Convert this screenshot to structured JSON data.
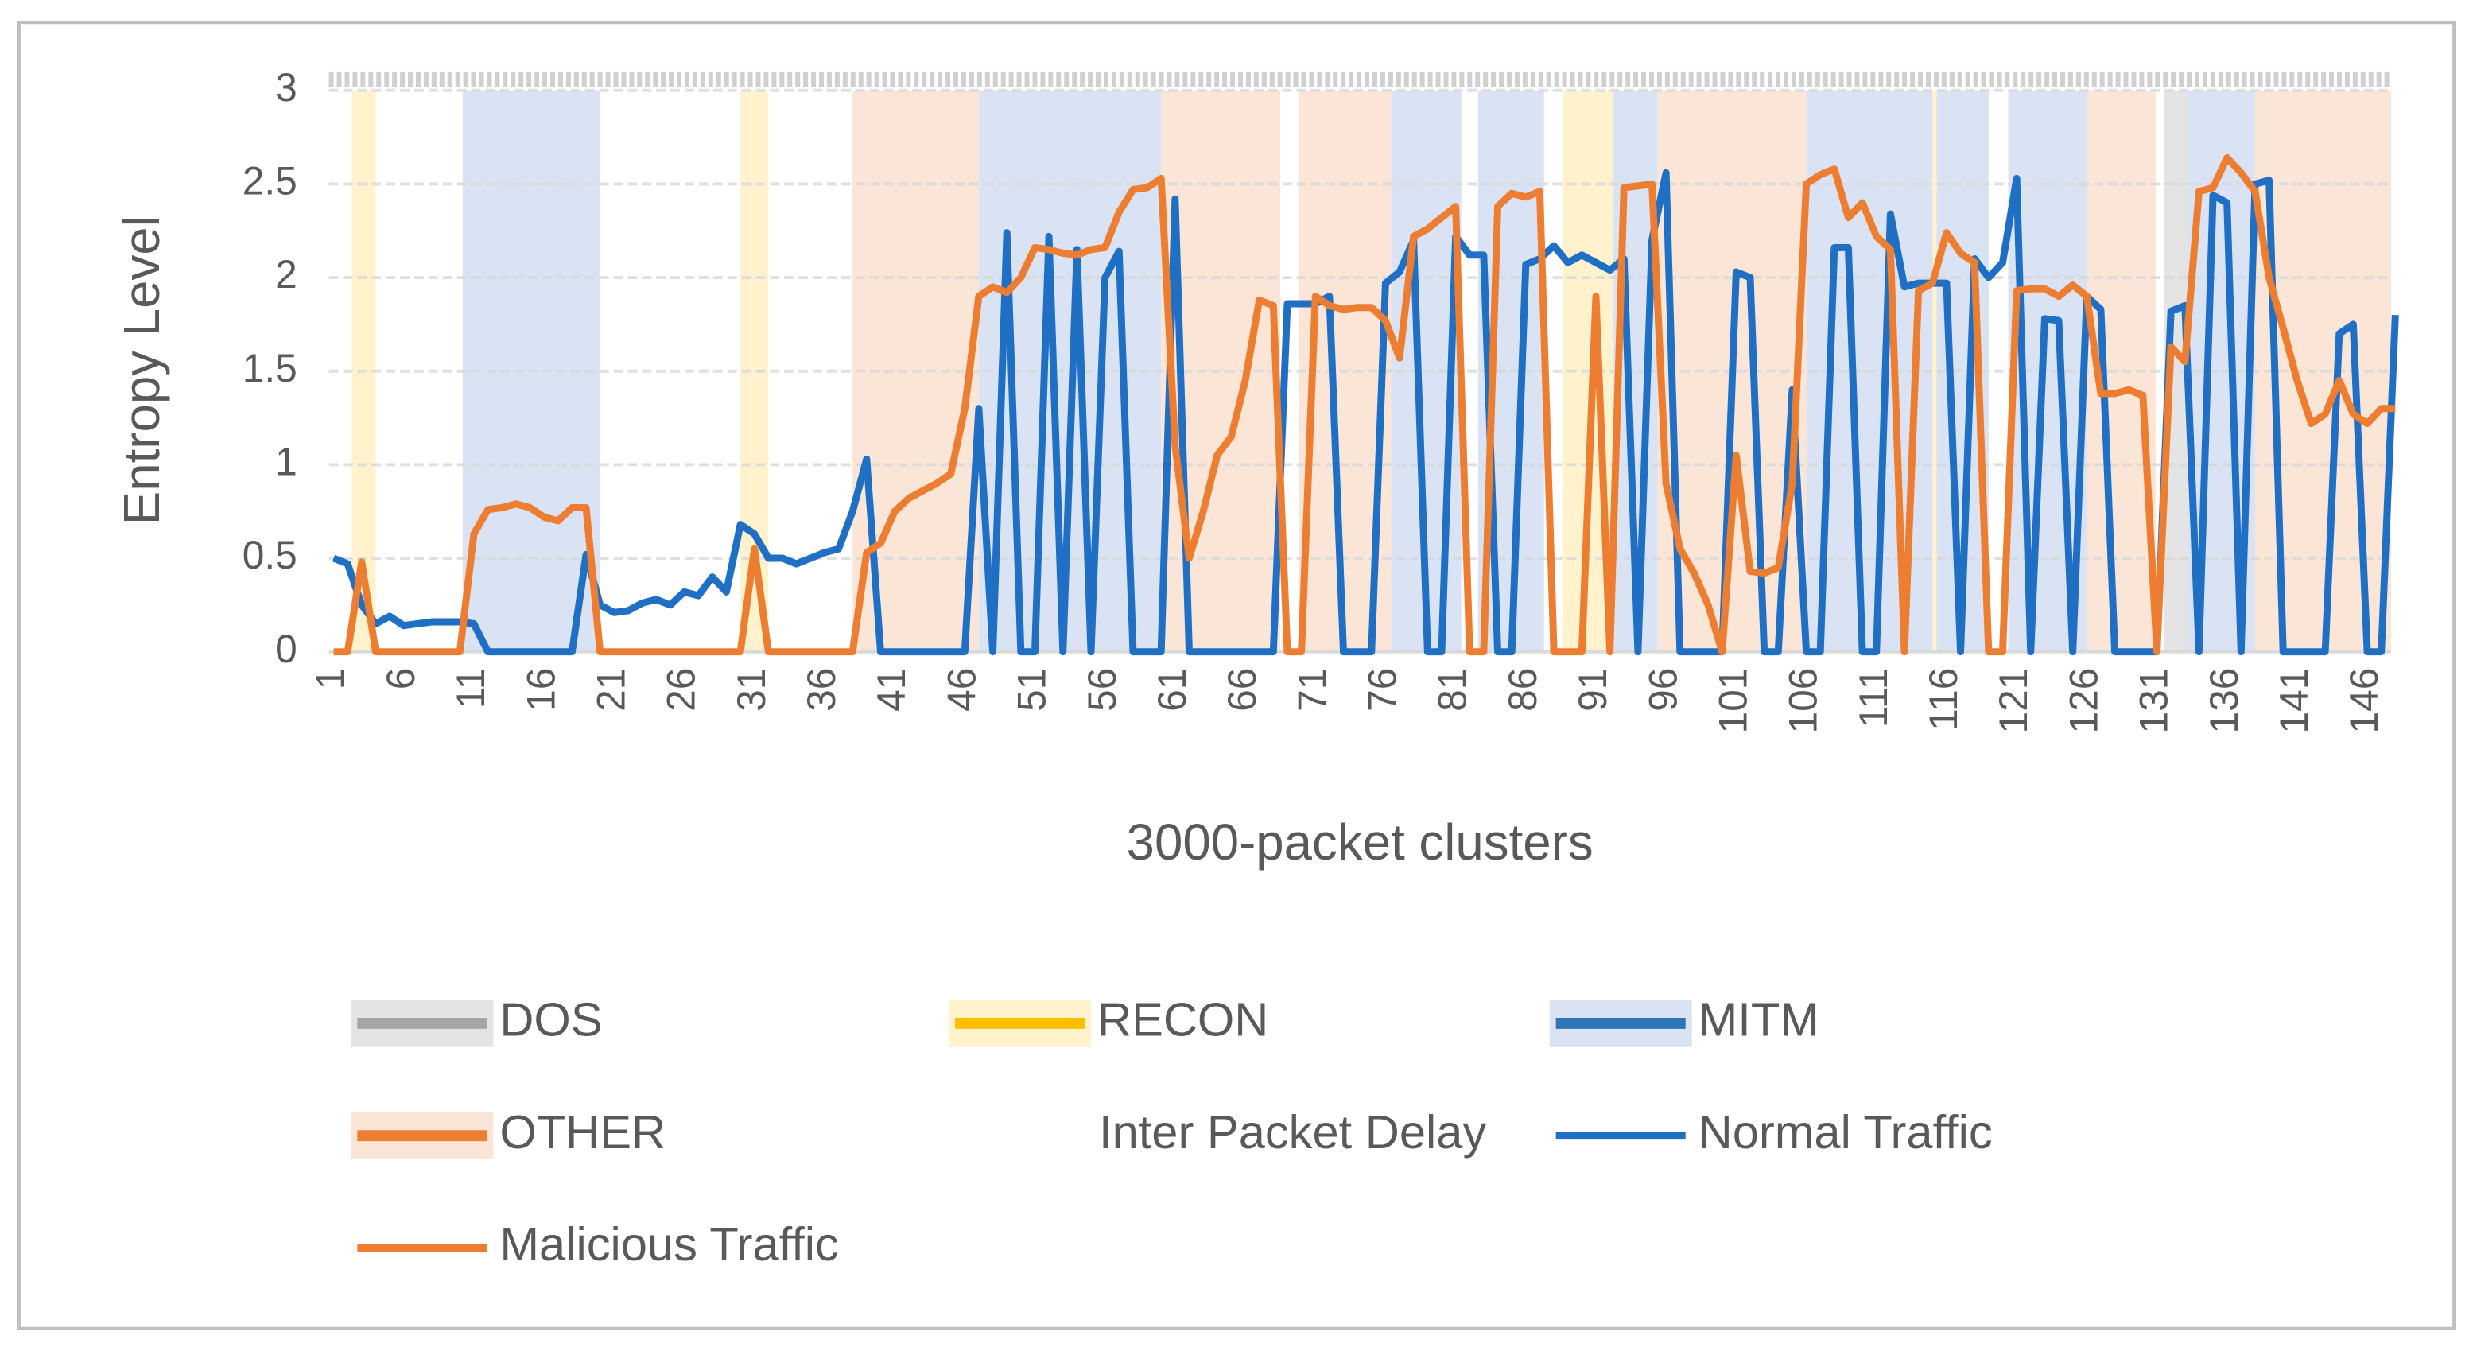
{
  "chart_data": {
    "type": "line",
    "x_label": "3000-packet clusters",
    "y_label": "Entropy Level",
    "ylim": [
      0,
      3
    ],
    "yticks": [
      0,
      0.5,
      1,
      1.5,
      2,
      2.5,
      3
    ],
    "grid": true,
    "legend": "bottom",
    "categories": [
      1,
      null,
      null,
      null,
      null,
      6,
      null,
      null,
      null,
      null,
      11,
      null,
      null,
      null,
      null,
      16,
      null,
      null,
      null,
      null,
      21,
      null,
      null,
      null,
      null,
      26,
      null,
      null,
      null,
      null,
      31,
      null,
      null,
      null,
      null,
      36,
      null,
      null,
      null,
      null,
      41,
      null,
      null,
      null,
      null,
      46,
      null,
      null,
      null,
      null,
      51,
      null,
      null,
      null,
      null,
      56,
      null,
      null,
      null,
      null,
      61,
      null,
      null,
      null,
      null,
      66,
      null,
      null,
      null,
      null,
      71,
      null,
      null,
      null,
      null,
      76,
      null,
      null,
      null,
      null,
      81,
      null,
      null,
      null,
      null,
      86,
      null,
      null,
      null,
      null,
      91,
      null,
      null,
      null,
      null,
      96,
      null,
      null,
      null,
      null,
      101,
      null,
      null,
      null,
      null,
      106,
      null,
      null,
      null,
      null,
      111,
      null,
      null,
      null,
      null,
      116,
      null,
      null,
      null,
      null,
      121,
      null,
      null,
      null,
      null,
      126,
      null,
      null,
      null,
      null,
      131,
      null,
      null,
      null,
      null,
      136,
      null,
      null,
      null,
      null,
      141,
      null,
      null,
      null,
      null,
      146,
      null,
      null
    ],
    "band_types": [
      {
        "name": "DOS",
        "color": "#e4e4e4",
        "line_color": "#a5a5a5"
      },
      {
        "name": "RECON",
        "color": "#fff2cc",
        "line_color": "#ffc000"
      },
      {
        "name": "MITM",
        "color": "#dae3f3",
        "line_color": "#2e75b6"
      },
      {
        "name": "OTHER",
        "color": "#fbe5d6",
        "line_color": "#ed7d31"
      }
    ],
    "legend_note": "Inter Packet Delay",
    "bands": [
      {
        "type": 1,
        "from": 2.3,
        "to": 4
      },
      {
        "type": 2,
        "from": 10.2,
        "to": 20
      },
      {
        "type": 1,
        "from": 30,
        "to": 32
      },
      {
        "type": 3,
        "from": 38,
        "to": 47
      },
      {
        "type": 2,
        "from": 47,
        "to": 60
      },
      {
        "type": 3,
        "from": 60,
        "to": 68.5
      },
      {
        "type": 3,
        "from": 69.8,
        "to": 76.4
      },
      {
        "type": 2,
        "from": 76.4,
        "to": 81.4
      },
      {
        "type": 2,
        "from": 82.6,
        "to": 87.3
      },
      {
        "type": 1,
        "from": 88.6,
        "to": 92.2
      },
      {
        "type": 2,
        "from": 92.2,
        "to": 95.4
      },
      {
        "type": 3,
        "from": 95.4,
        "to": 106
      },
      {
        "type": 2,
        "from": 106,
        "to": 119
      },
      {
        "type": 1,
        "from": 115,
        "to": 115.3
      },
      {
        "type": 2,
        "from": 120.4,
        "to": 126
      },
      {
        "type": 3,
        "from": 126,
        "to": 130.9
      },
      {
        "type": 0,
        "from": 131.5,
        "to": 133.2
      },
      {
        "type": 2,
        "from": 133.2,
        "to": 138
      },
      {
        "type": 3,
        "from": 138,
        "to": 147.7
      }
    ],
    "series": [
      {
        "name": "Normal Traffic",
        "color": "#1f6fc5",
        "values": [
          0.5,
          0.47,
          0.25,
          0.15,
          0.19,
          0.14,
          0.15,
          0.16,
          0.16,
          0.16,
          0.15,
          0,
          0,
          0,
          0,
          0,
          0,
          0,
          0.52,
          0.25,
          0.21,
          0.22,
          0.26,
          0.28,
          0.25,
          0.32,
          0.3,
          0.4,
          0.32,
          0.68,
          0.63,
          0.5,
          0.5,
          0.47,
          0.5,
          0.53,
          0.55,
          0.75,
          1.03,
          0,
          0,
          0,
          0,
          0,
          0,
          0,
          1.3,
          0,
          2.24,
          0,
          0,
          2.22,
          0,
          2.15,
          0,
          2.0,
          2.14,
          0,
          0,
          0,
          2.42,
          0,
          0,
          0,
          0,
          0,
          0,
          0,
          1.86,
          1.86,
          1.86,
          1.9,
          0,
          0,
          0,
          1.97,
          2.03,
          2.2,
          0,
          0,
          2.22,
          2.12,
          2.12,
          0,
          0,
          2.07,
          2.1,
          2.17,
          2.08,
          2.12,
          2.08,
          2.04,
          2.1,
          0,
          2.2,
          2.56,
          0,
          0,
          0,
          0,
          2.03,
          2.0,
          0,
          0,
          1.4,
          0,
          0,
          2.16,
          2.16,
          0,
          0,
          2.34,
          1.95,
          1.97,
          1.97,
          1.97,
          0,
          2.1,
          2.0,
          2.08,
          2.53,
          0,
          1.78,
          1.77,
          0,
          1.9,
          1.83,
          0,
          0,
          0,
          0,
          1.82,
          1.85,
          0,
          2.44,
          2.4,
          0,
          2.5,
          2.52,
          0,
          0,
          0,
          0,
          1.7,
          1.75,
          0,
          0,
          1.8
        ]
      },
      {
        "name": "Malicious Traffic",
        "color": "#ed7d31",
        "values": [
          0,
          0,
          0.48,
          0,
          0,
          0,
          0,
          0,
          0,
          0,
          0.63,
          0.76,
          0.77,
          0.79,
          0.77,
          0.72,
          0.7,
          0.77,
          0.77,
          0,
          0,
          0,
          0,
          0,
          0,
          0,
          0,
          0,
          0,
          0,
          0.55,
          0,
          0,
          0,
          0,
          0,
          0,
          0,
          0.53,
          0.58,
          0.75,
          0.82,
          0.86,
          0.9,
          0.95,
          1.3,
          1.9,
          1.95,
          1.92,
          2.0,
          2.16,
          2.15,
          2.13,
          2.12,
          2.15,
          2.16,
          2.35,
          2.47,
          2.48,
          2.53,
          1.1,
          0.5,
          0.75,
          1.05,
          1.15,
          1.45,
          1.88,
          1.85,
          0,
          0,
          1.9,
          1.85,
          1.83,
          1.84,
          1.84,
          1.77,
          1.57,
          2.22,
          2.26,
          2.32,
          2.38,
          0,
          0,
          2.38,
          2.45,
          2.43,
          2.46,
          0,
          0,
          0,
          1.9,
          0,
          2.48,
          2.49,
          2.5,
          0.9,
          0.55,
          0.42,
          0.25,
          0,
          1.05,
          0.43,
          0.42,
          0.45,
          0.9,
          2.5,
          2.55,
          2.58,
          2.32,
          2.4,
          2.22,
          2.15,
          0,
          1.93,
          1.97,
          2.24,
          2.13,
          2.08,
          0,
          0,
          1.93,
          1.94,
          1.94,
          1.9,
          1.96,
          1.9,
          1.38,
          1.38,
          1.4,
          1.37,
          0,
          1.63,
          1.55,
          2.46,
          2.48,
          2.64,
          2.56,
          2.46,
          2.0,
          1.73,
          1.45,
          1.22,
          1.27,
          1.45,
          1.27,
          1.22,
          1.3,
          1.3
        ]
      }
    ]
  }
}
